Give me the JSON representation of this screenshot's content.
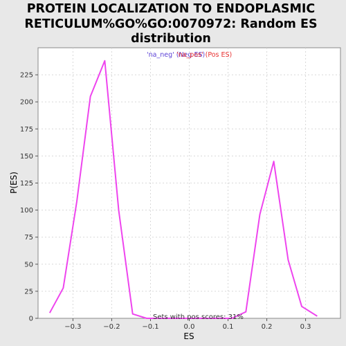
{
  "chart_data": {
    "type": "line",
    "title_lines": [
      "PROTEIN LOCALIZATION TO ENDOPLASMIC",
      "RETICULUM%GO%GO:0070972: Random ES",
      "distribution"
    ],
    "xlabel": "ES",
    "ylabel": "P(ES)",
    "xlim": [
      -0.39,
      0.39
    ],
    "ylim": [
      0,
      250
    ],
    "x_ticks": [
      -0.3,
      -0.2,
      -0.1,
      0.0,
      0.1,
      0.2,
      0.3
    ],
    "x_tick_labels": [
      "−0.3",
      "−0.2",
      "−0.1",
      "0.0",
      "0.1",
      "0.2",
      "0.3"
    ],
    "y_ticks": [
      0,
      25,
      50,
      75,
      100,
      125,
      150,
      175,
      200,
      225
    ],
    "y_tick_labels": [
      "0",
      "25",
      "50",
      "75",
      "100",
      "125",
      "150",
      "175",
      "200",
      "225"
    ],
    "grid": true,
    "legend": [
      {
        "label": "'na_neg' (Neg ES)",
        "color": "#5a3fd6"
      },
      {
        "label": "'na_pos' (Pos ES)",
        "color": "#e83030"
      }
    ],
    "annotation": "Sets with pos scores: 31%",
    "series": [
      {
        "color": "#ee44ee",
        "x": [
          -0.36,
          -0.325,
          -0.29,
          -0.255,
          -0.218,
          -0.182,
          -0.146,
          -0.11,
          -0.075,
          0.11,
          0.146,
          0.182,
          0.218,
          0.255,
          0.29,
          0.33
        ],
        "y": [
          5,
          28,
          108,
          205,
          238,
          100,
          4,
          0,
          0,
          0,
          6,
          96,
          145,
          54,
          11,
          2
        ]
      }
    ]
  }
}
